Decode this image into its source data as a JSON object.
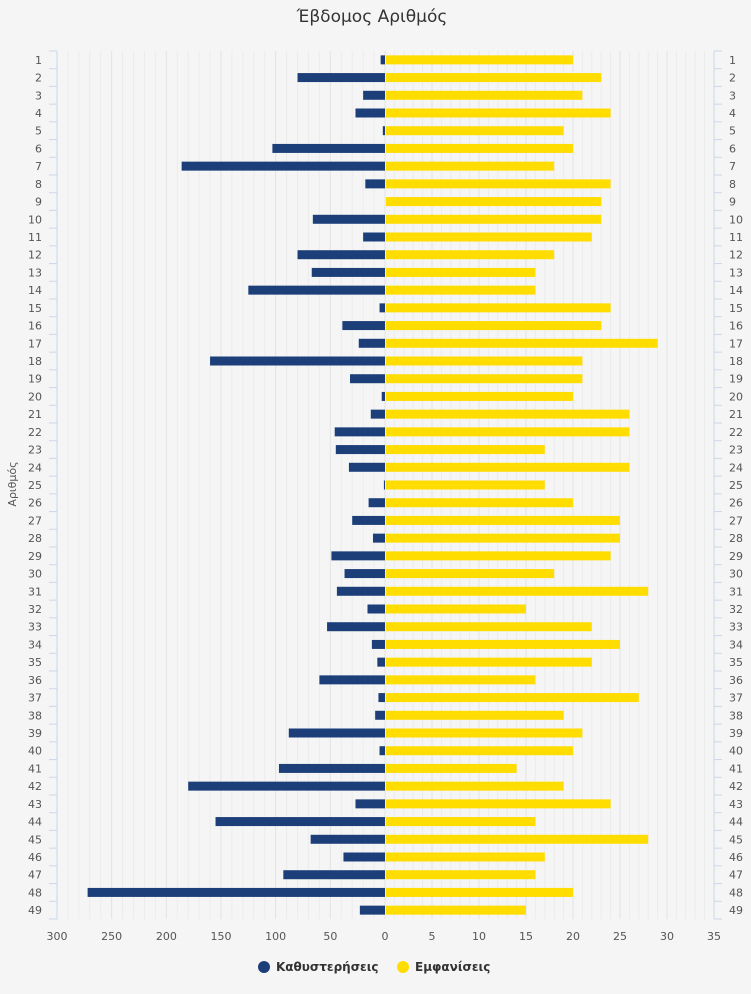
{
  "chart_data": {
    "type": "bar",
    "orientation": "horizontal",
    "title": "Έβδομος Αριθμός",
    "ylabel": "Αριθμός",
    "categories": [
      "1",
      "2",
      "3",
      "4",
      "5",
      "6",
      "7",
      "8",
      "9",
      "10",
      "11",
      "12",
      "13",
      "14",
      "15",
      "16",
      "17",
      "18",
      "19",
      "20",
      "21",
      "22",
      "23",
      "24",
      "25",
      "26",
      "27",
      "28",
      "29",
      "30",
      "31",
      "32",
      "33",
      "34",
      "35",
      "36",
      "37",
      "38",
      "39",
      "40",
      "41",
      "42",
      "43",
      "44",
      "45",
      "46",
      "47",
      "48",
      "49"
    ],
    "series": [
      {
        "name": "Καθυστερήσεις",
        "color": "#1c3f7a",
        "axis_range": [
          0,
          300
        ],
        "axis_ticks": [
          300,
          250,
          200,
          150,
          100,
          50,
          0
        ],
        "direction": "left",
        "values": [
          4,
          80,
          20,
          27,
          2,
          103,
          186,
          18,
          0,
          66,
          20,
          80,
          67,
          125,
          5,
          39,
          24,
          160,
          32,
          3,
          13,
          46,
          45,
          33,
          1,
          15,
          30,
          11,
          49,
          37,
          44,
          16,
          53,
          12,
          7,
          60,
          6,
          9,
          88,
          5,
          97,
          180,
          27,
          155,
          68,
          38,
          93,
          272,
          23
        ]
      },
      {
        "name": "Εμφανίσεις",
        "color": "#ffdd00",
        "axis_range": [
          0,
          35
        ],
        "axis_ticks": [
          0,
          5,
          10,
          15,
          20,
          25,
          30,
          35
        ],
        "direction": "right",
        "values": [
          20,
          23,
          21,
          24,
          19,
          20,
          18,
          24,
          23,
          23,
          22,
          18,
          16,
          16,
          24,
          23,
          29,
          21,
          21,
          20,
          26,
          26,
          17,
          26,
          17,
          20,
          25,
          25,
          24,
          18,
          28,
          15,
          22,
          25,
          22,
          16,
          27,
          19,
          21,
          20,
          14,
          19,
          24,
          16,
          28,
          17,
          16,
          20,
          15
        ]
      }
    ],
    "grid": true,
    "legend": "bottom-center"
  }
}
